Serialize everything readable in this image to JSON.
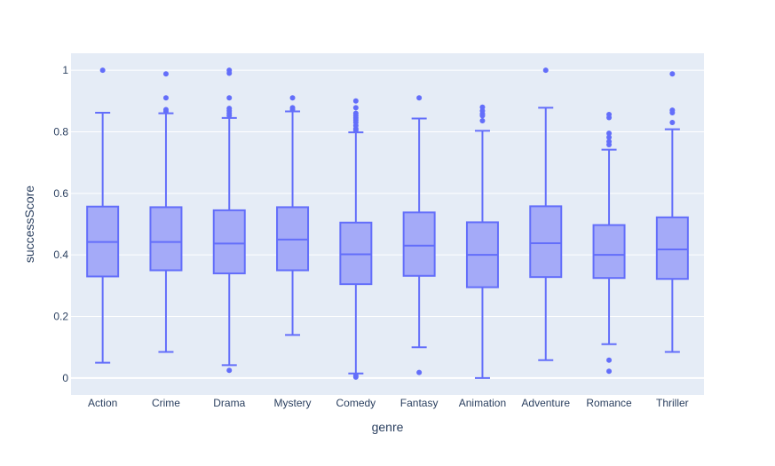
{
  "chart_data": {
    "type": "box",
    "xlabel": "genre",
    "ylabel": "successScore",
    "ylim": [
      -0.055,
      1.055
    ],
    "y_ticks": [
      {
        "value": 0,
        "label": "0"
      },
      {
        "value": 0.2,
        "label": "0.2"
      },
      {
        "value": 0.4,
        "label": "0.4"
      },
      {
        "value": 0.6,
        "label": "0.6"
      },
      {
        "value": 0.8,
        "label": "0.8"
      },
      {
        "value": 1,
        "label": "1"
      }
    ],
    "grid": true,
    "colors": {
      "plot_bg": "#e5ecf6",
      "grid": "#ffffff",
      "box_line": "#636efa",
      "box_fill": "#a4aaf8",
      "text": "#2a3f5f"
    },
    "categories": [
      "Action",
      "Crime",
      "Drama",
      "Mystery",
      "Comedy",
      "Fantasy",
      "Animation",
      "Adventure",
      "Romance",
      "Thriller"
    ],
    "boxes": [
      {
        "category": "Action",
        "lower_fence": 0.05,
        "q1": 0.33,
        "median": 0.442,
        "q3": 0.557,
        "upper_fence": 0.862,
        "outliers": [
          1.0
        ]
      },
      {
        "category": "Crime",
        "lower_fence": 0.085,
        "q1": 0.35,
        "median": 0.442,
        "q3": 0.555,
        "upper_fence": 0.86,
        "outliers": [
          0.988,
          0.91,
          0.872,
          0.866
        ]
      },
      {
        "category": "Drama",
        "lower_fence": 0.042,
        "q1": 0.34,
        "median": 0.437,
        "q3": 0.545,
        "upper_fence": 0.845,
        "outliers": [
          1.0,
          0.99,
          0.91,
          0.876,
          0.868,
          0.86,
          0.853,
          0.025
        ]
      },
      {
        "category": "Mystery",
        "lower_fence": 0.14,
        "q1": 0.35,
        "median": 0.45,
        "q3": 0.555,
        "upper_fence": 0.866,
        "outliers": [
          0.91,
          0.878,
          0.872
        ]
      },
      {
        "category": "Comedy",
        "lower_fence": 0.015,
        "q1": 0.305,
        "median": 0.402,
        "q3": 0.505,
        "upper_fence": 0.798,
        "outliers": [
          0.9,
          0.878,
          0.86,
          0.852,
          0.845,
          0.838,
          0.83,
          0.82,
          0.81,
          0.805,
          0.008,
          0.003
        ]
      },
      {
        "category": "Fantasy",
        "lower_fence": 0.1,
        "q1": 0.332,
        "median": 0.43,
        "q3": 0.538,
        "upper_fence": 0.843,
        "outliers": [
          0.91,
          0.018
        ]
      },
      {
        "category": "Animation",
        "lower_fence": 0.0,
        "q1": 0.295,
        "median": 0.4,
        "q3": 0.506,
        "upper_fence": 0.803,
        "outliers": [
          0.88,
          0.868,
          0.858,
          0.852,
          0.836
        ]
      },
      {
        "category": "Adventure",
        "lower_fence": 0.058,
        "q1": 0.328,
        "median": 0.438,
        "q3": 0.558,
        "upper_fence": 0.878,
        "outliers": [
          1.0
        ]
      },
      {
        "category": "Romance",
        "lower_fence": 0.11,
        "q1": 0.325,
        "median": 0.4,
        "q3": 0.497,
        "upper_fence": 0.742,
        "outliers": [
          0.856,
          0.846,
          0.795,
          0.782,
          0.768,
          0.758,
          0.058,
          0.022
        ]
      },
      {
        "category": "Thriller",
        "lower_fence": 0.085,
        "q1": 0.322,
        "median": 0.418,
        "q3": 0.522,
        "upper_fence": 0.808,
        "outliers": [
          0.988,
          0.87,
          0.862,
          0.83
        ]
      }
    ]
  }
}
